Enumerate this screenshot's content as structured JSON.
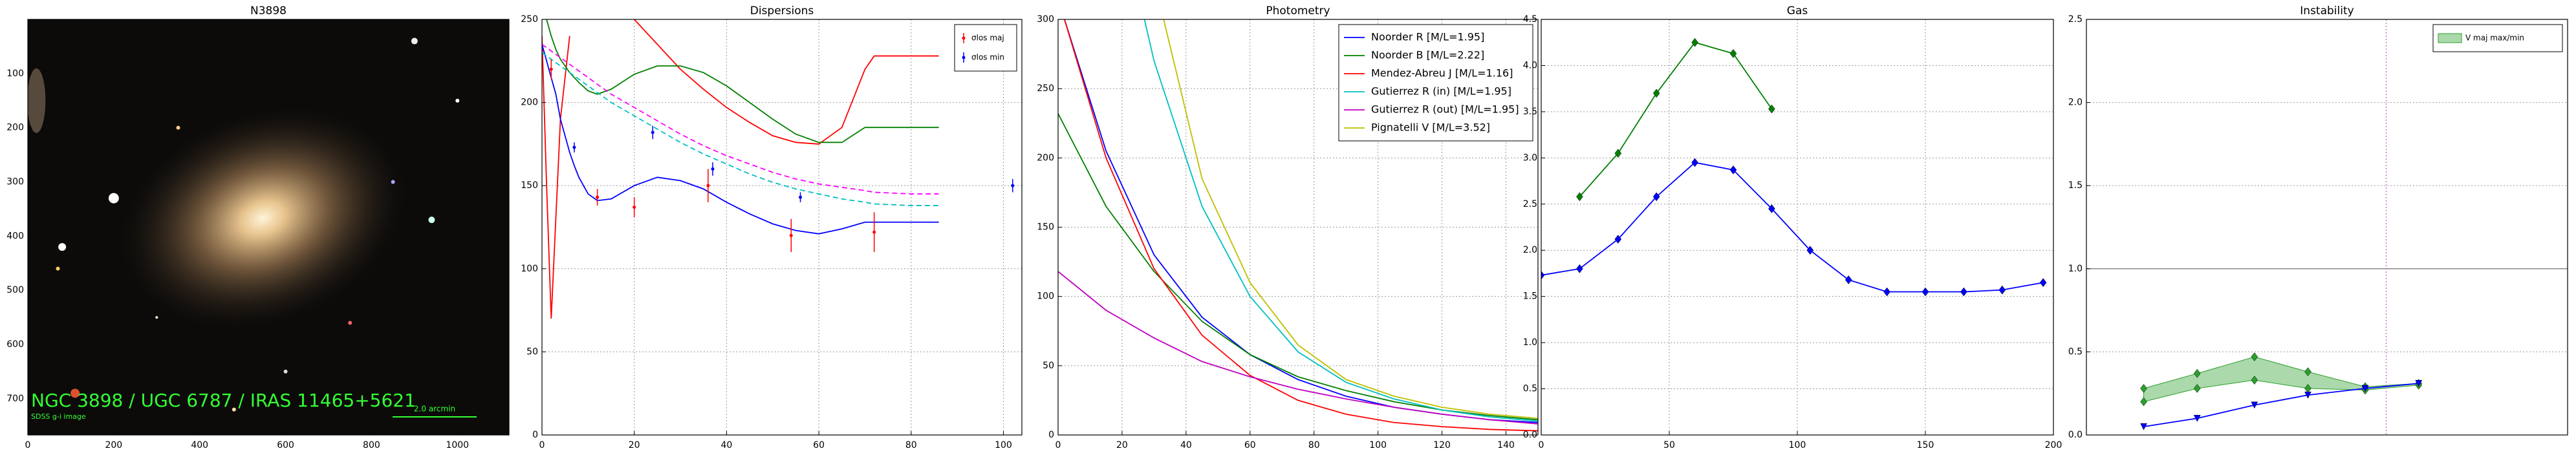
{
  "chart_data": [
    {
      "type": "image",
      "title": "N3898",
      "xlim": [
        0,
        1120
      ],
      "ylim": [
        0,
        767
      ],
      "xticks": [
        0,
        200,
        400,
        600,
        800,
        1000
      ],
      "yticks": [
        100,
        200,
        300,
        400,
        500,
        600,
        700
      ],
      "annotations": [
        "NGC 3898 / UGC 6787 / IRAS 11465+5621",
        "SDSS g-i image",
        "2.0 arcmin"
      ]
    },
    {
      "type": "line",
      "title": "Dispersions",
      "xlim": [
        0,
        104
      ],
      "ylim": [
        0,
        250
      ],
      "xticks": [
        0,
        20,
        40,
        60,
        80,
        100
      ],
      "yticks": [
        0,
        50,
        100,
        150,
        200,
        250
      ],
      "grid": true,
      "legend": "upper right",
      "series": [
        {
          "color": "#ff0000",
          "x": [
            0,
            1,
            2,
            3,
            4,
            6,
            7,
            8,
            10,
            12,
            15,
            20,
            25,
            30,
            35,
            40,
            45,
            50,
            55,
            60,
            65,
            70,
            72,
            80,
            86
          ],
          "values": [
            240,
            150,
            70,
            130,
            190,
            240,
            null,
            null,
            null,
            null,
            null,
            250,
            235,
            220,
            208,
            197,
            188,
            180,
            176,
            175,
            185,
            220,
            228,
            228,
            228
          ]
        },
        {
          "color": "#008000",
          "x": [
            0,
            1,
            2,
            3,
            4,
            6,
            7,
            8,
            10,
            12,
            15,
            20,
            25,
            30,
            35,
            40,
            45,
            50,
            55,
            60,
            65,
            70,
            72,
            80,
            86
          ],
          "values": [
            null,
            250,
            240,
            232,
            226,
            218,
            215,
            212,
            207,
            205,
            208,
            217,
            222,
            222,
            218,
            210,
            200,
            190,
            181,
            176,
            176,
            185,
            185,
            185,
            185
          ]
        },
        {
          "color": "#0000ff",
          "x": [
            0,
            1,
            2,
            3,
            4,
            6,
            7,
            8,
            10,
            12,
            15,
            20,
            25,
            30,
            35,
            40,
            45,
            50,
            55,
            60,
            65,
            70,
            72,
            80,
            86
          ],
          "values": [
            235,
            225,
            215,
            205,
            190,
            170,
            162,
            155,
            145,
            141,
            142,
            150,
            155,
            153,
            148,
            140,
            133,
            127,
            123,
            121,
            124,
            128,
            128,
            128,
            128
          ]
        },
        {
          "color": "#ff00ff",
          "dash": true,
          "x": [
            0,
            1,
            2,
            3,
            4,
            6,
            7,
            8,
            10,
            12,
            15,
            20,
            25,
            30,
            35,
            40,
            45,
            50,
            55,
            60,
            65,
            70,
            72,
            80,
            86
          ],
          "values": [
            235,
            233,
            231,
            229,
            227,
            223,
            221,
            219,
            215,
            211,
            205,
            197,
            189,
            181,
            174,
            168,
            163,
            158,
            154,
            151,
            149,
            147,
            146,
            145,
            145
          ]
        },
        {
          "color": "#00bfbf",
          "dash": true,
          "x": [
            0,
            1,
            2,
            3,
            4,
            6,
            7,
            8,
            10,
            12,
            15,
            20,
            25,
            30,
            35,
            40,
            45,
            50,
            55,
            60,
            65,
            70,
            72,
            80,
            86
          ],
          "values": [
            230,
            228,
            226,
            224,
            222,
            218,
            216,
            214,
            210,
            206,
            200,
            192,
            184,
            176,
            169,
            163,
            157,
            152,
            148,
            145,
            142,
            140,
            139,
            138,
            138
          ]
        },
        {
          "name": "σlos maj",
          "color": "#ff0000",
          "x": [
            2,
            12,
            20,
            36,
            54,
            72
          ],
          "values": [
            220,
            143,
            137,
            150,
            120,
            122
          ],
          "errors": [
            6,
            5,
            6,
            10,
            10,
            12
          ]
        },
        {
          "name": "σlos min",
          "color": "#0000ff",
          "x": [
            7,
            24,
            37,
            56,
            102
          ],
          "values": [
            173,
            182,
            160,
            143,
            150
          ],
          "errors": [
            3,
            4,
            4,
            3,
            4
          ]
        }
      ]
    },
    {
      "type": "line",
      "title": "Photometry",
      "xlim": [
        0,
        150
      ],
      "ylim": [
        0,
        300
      ],
      "xticks": [
        0,
        20,
        40,
        60,
        80,
        100,
        120,
        140
      ],
      "yticks": [
        0,
        50,
        100,
        150,
        200,
        250,
        300
      ],
      "grid": true,
      "legend": "upper right",
      "series": [
        {
          "name": "Noorder R [M/L=1.95]",
          "color": "#0000ff",
          "x": [
            2,
            15,
            30,
            45,
            60,
            75,
            90,
            105,
            120,
            135,
            150
          ],
          "values": [
            300,
            205,
            130,
            85,
            58,
            40,
            28,
            20,
            15,
            11,
            9
          ]
        },
        {
          "name": "Noorder B [M/L=2.22]",
          "color": "#008000",
          "x": [
            0,
            15,
            30,
            45,
            60,
            75,
            90,
            105,
            120,
            135,
            150
          ],
          "values": [
            232,
            165,
            118,
            82,
            58,
            42,
            32,
            24,
            18,
            14,
            11
          ]
        },
        {
          "name": "Mendez-Abreu J [M/L=1.16]",
          "color": "#ff0000",
          "x": [
            2,
            15,
            30,
            45,
            60,
            75,
            90,
            105,
            120,
            135,
            150
          ],
          "values": [
            300,
            200,
            120,
            72,
            43,
            25,
            15,
            9,
            6,
            4,
            3
          ]
        },
        {
          "name": "Gutierrez R (in) [M/L=1.95]",
          "color": "#00bfbf",
          "x": [
            27,
            30,
            45,
            60,
            75,
            90,
            105,
            120,
            135,
            150
          ],
          "values": [
            300,
            270,
            165,
            100,
            60,
            38,
            26,
            18,
            13,
            10
          ]
        },
        {
          "name": "Gutierrez R (out) [M/L=1.95]",
          "color": "#bf00bf",
          "x": [
            0,
            15,
            30,
            45,
            60,
            75,
            90,
            105,
            120,
            135,
            150
          ],
          "values": [
            118,
            90,
            70,
            53,
            42,
            33,
            26,
            20,
            15,
            11,
            8
          ]
        },
        {
          "name": "Pignatelli V [M/L=3.52]",
          "color": "#bfbf00",
          "x": [
            33,
            45,
            60,
            75,
            90,
            105,
            120,
            135,
            150
          ],
          "values": [
            300,
            185,
            110,
            65,
            40,
            28,
            20,
            15,
            12
          ]
        }
      ]
    },
    {
      "type": "line",
      "title": "Gas",
      "xlim": [
        0,
        200
      ],
      "ylim": [
        0,
        4.5
      ],
      "xticks": [
        0,
        50,
        100,
        150,
        200
      ],
      "yticks": [
        {
          "value": 0,
          "label": "0.0"
        },
        0.5,
        {
          "value": 1,
          "label": "1.0"
        },
        1.5,
        {
          "value": 2,
          "label": "2.0"
        },
        2.5,
        {
          "value": 3,
          "label": "3.0"
        },
        3.5,
        {
          "value": 4,
          "label": "4.0"
        },
        4.5
      ],
      "grid": true,
      "series": [
        {
          "color": "#0000ff",
          "marker": "diamond",
          "x": [
            0,
            15,
            30,
            45,
            60,
            75,
            90,
            105,
            120,
            135,
            150,
            165,
            180,
            196
          ],
          "values": [
            1.73,
            1.8,
            2.12,
            2.58,
            2.95,
            2.87,
            2.45,
            2.0,
            1.68,
            1.55,
            1.55,
            1.55,
            1.57,
            1.65
          ]
        },
        {
          "color": "#008000",
          "marker": "diamond",
          "x": [
            15,
            30,
            45,
            60,
            75,
            90
          ],
          "values": [
            2.58,
            3.05,
            3.7,
            4.25,
            4.13,
            3.53
          ]
        }
      ]
    },
    {
      "type": "band",
      "title": "Instability",
      "xlim": [
        0,
        126
      ],
      "ylim": [
        0,
        2.5
      ],
      "yticks": [
        {
          "value": 0,
          "label": "0.0"
        },
        0.5,
        {
          "value": 1,
          "label": "1.0"
        },
        1.5,
        {
          "value": 2,
          "label": "2.0"
        },
        2.5
      ],
      "grid": true,
      "legend": "upper right",
      "hline": 1,
      "vline": 78.5,
      "band": {
        "name": "V maj max/min",
        "color": "#2ca02c",
        "x": [
          15,
          29,
          44,
          58,
          73,
          87
        ],
        "lower": [
          0.2,
          0.28,
          0.33,
          0.28,
          0.27,
          0.3
        ],
        "upper": [
          0.28,
          0.37,
          0.47,
          0.38,
          0.29,
          0.31
        ]
      },
      "series": [
        {
          "color": "#0000ff",
          "marker": "tri",
          "x": [
            15,
            29,
            44,
            58,
            73,
            87
          ],
          "values": [
            0.05,
            0.1,
            0.18,
            0.24,
            0.28,
            0.31
          ]
        }
      ]
    }
  ]
}
